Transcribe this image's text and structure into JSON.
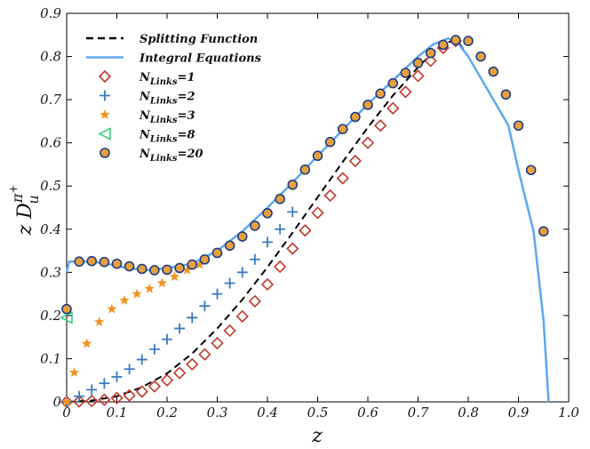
{
  "chart_data": {
    "type": "line",
    "title": "",
    "xlabel": "z",
    "ylabel": {
      "prefix": "z D",
      "superscript": "π",
      "superscript2": "+",
      "subscript": "u"
    },
    "xlim": [
      0,
      1.0
    ],
    "ylim": [
      0,
      0.9
    ],
    "x_ticks": [
      "0",
      "0.1",
      "0.2",
      "0.3",
      "0.4",
      "0.5",
      "0.6",
      "0.7",
      "0.8",
      "0.9",
      "1.0"
    ],
    "y_ticks": [
      "0",
      "0.1",
      "0.2",
      "0.3",
      "0.4",
      "0.5",
      "0.6",
      "0.7",
      "0.8",
      "0.9"
    ],
    "grid": false,
    "legend_position": "top-left",
    "legend": [
      {
        "label": "Splitting Function",
        "style": "dashed-line",
        "color": "#000000"
      },
      {
        "label": "Integral Equations",
        "style": "solid-line",
        "color": "#5ea8ef"
      },
      {
        "label": "N",
        "sub": "Links",
        "eq": "=1",
        "style": "diamond",
        "color": "#c0392b"
      },
      {
        "label": "N",
        "sub": "Links",
        "eq": "=2",
        "style": "plus",
        "color": "#3a7bbf"
      },
      {
        "label": "N",
        "sub": "Links",
        "eq": "=3",
        "style": "star",
        "color": "#f0931e"
      },
      {
        "label": "N",
        "sub": "Links",
        "eq": "=8",
        "style": "triangle-left",
        "color": "#2ecc71"
      },
      {
        "label": "N",
        "sub": "Links",
        "eq": "=20",
        "style": "circle",
        "color": "#1f3c88"
      }
    ],
    "series": [
      {
        "name": "Splitting Function",
        "style": "dashed-line",
        "color": "#000000",
        "x": [
          0.0,
          0.05,
          0.1,
          0.15,
          0.2,
          0.25,
          0.3,
          0.35,
          0.4,
          0.45,
          0.5,
          0.55,
          0.6,
          0.65,
          0.7,
          0.72,
          0.74,
          0.76,
          0.78,
          0.8,
          0.84,
          0.88,
          0.9,
          0.93,
          0.95,
          0.96
        ],
        "y": [
          0.0,
          0.003,
          0.013,
          0.034,
          0.066,
          0.112,
          0.17,
          0.237,
          0.312,
          0.392,
          0.474,
          0.556,
          0.636,
          0.71,
          0.775,
          0.798,
          0.818,
          0.834,
          0.834,
          0.8,
          0.72,
          0.64,
          0.537,
          0.395,
          0.187,
          0.0
        ]
      },
      {
        "name": "Integral Equations",
        "style": "solid-line",
        "color": "#5ea8ef",
        "x": [
          0.0,
          0.005,
          0.02,
          0.05,
          0.08,
          0.12,
          0.16,
          0.2,
          0.25,
          0.3,
          0.35,
          0.4,
          0.45,
          0.5,
          0.55,
          0.6,
          0.65,
          0.7,
          0.73,
          0.76,
          0.78,
          0.8,
          0.84,
          0.88,
          0.9,
          0.93,
          0.95,
          0.96
        ],
        "y": [
          0.3,
          0.325,
          0.325,
          0.325,
          0.32,
          0.31,
          0.305,
          0.31,
          0.32,
          0.35,
          0.395,
          0.45,
          0.508,
          0.57,
          0.63,
          0.69,
          0.745,
          0.8,
          0.828,
          0.842,
          0.83,
          0.8,
          0.72,
          0.64,
          0.537,
          0.395,
          0.187,
          0.0
        ]
      },
      {
        "name": "NLinks=1",
        "style": "diamond",
        "color": "#c0392b",
        "x": [
          0.0,
          0.025,
          0.05,
          0.075,
          0.1,
          0.125,
          0.15,
          0.175,
          0.2,
          0.225,
          0.25,
          0.275,
          0.3,
          0.325,
          0.35,
          0.375,
          0.4,
          0.425,
          0.45,
          0.475,
          0.5,
          0.525,
          0.55,
          0.575,
          0.6,
          0.625,
          0.65,
          0.675,
          0.7,
          0.725,
          0.75,
          0.775
        ],
        "y": [
          0.0,
          0.001,
          0.002,
          0.005,
          0.009,
          0.015,
          0.024,
          0.036,
          0.05,
          0.067,
          0.087,
          0.11,
          0.136,
          0.165,
          0.198,
          0.233,
          0.272,
          0.313,
          0.355,
          0.397,
          0.438,
          0.478,
          0.518,
          0.558,
          0.6,
          0.64,
          0.68,
          0.718,
          0.755,
          0.79,
          0.82,
          0.836
        ]
      },
      {
        "name": "NLinks=2",
        "style": "plus",
        "color": "#3a7bbf",
        "x": [
          0.0,
          0.025,
          0.05,
          0.075,
          0.1,
          0.125,
          0.15,
          0.175,
          0.2,
          0.225,
          0.25,
          0.275,
          0.3,
          0.325,
          0.35,
          0.375,
          0.4,
          0.425,
          0.45
        ],
        "y": [
          0.0,
          0.013,
          0.028,
          0.043,
          0.058,
          0.076,
          0.098,
          0.122,
          0.145,
          0.17,
          0.195,
          0.222,
          0.25,
          0.275,
          0.3,
          0.33,
          0.37,
          0.4,
          0.44
        ]
      },
      {
        "name": "NLinks=3",
        "style": "star",
        "color": "#f0931e",
        "x": [
          0.0,
          0.015,
          0.04,
          0.065,
          0.09,
          0.115,
          0.14,
          0.165,
          0.19,
          0.215,
          0.24,
          0.265
        ],
        "y": [
          0.0,
          0.068,
          0.135,
          0.185,
          0.215,
          0.235,
          0.25,
          0.262,
          0.275,
          0.29,
          0.305,
          0.318
        ]
      },
      {
        "name": "NLinks=8",
        "style": "triangle-left",
        "color": "#2ecc71",
        "x": [
          0.0
        ],
        "y": [
          0.195
        ]
      },
      {
        "name": "NLinks=20",
        "style": "circle",
        "color": "#1f3c88",
        "x": [
          0.0,
          0.025,
          0.05,
          0.075,
          0.1,
          0.125,
          0.15,
          0.175,
          0.2,
          0.225,
          0.25,
          0.275,
          0.3,
          0.325,
          0.35,
          0.375,
          0.4,
          0.425,
          0.45,
          0.475,
          0.5,
          0.525,
          0.55,
          0.575,
          0.6,
          0.625,
          0.65,
          0.675,
          0.7,
          0.725,
          0.75,
          0.775,
          0.8,
          0.825,
          0.85,
          0.875,
          0.9,
          0.925,
          0.95
        ],
        "y": [
          0.215,
          0.325,
          0.326,
          0.324,
          0.32,
          0.314,
          0.308,
          0.305,
          0.306,
          0.31,
          0.318,
          0.33,
          0.345,
          0.362,
          0.383,
          0.408,
          0.437,
          0.47,
          0.503,
          0.538,
          0.57,
          0.602,
          0.632,
          0.66,
          0.688,
          0.714,
          0.738,
          0.762,
          0.785,
          0.808,
          0.827,
          0.838,
          0.836,
          0.8,
          0.765,
          0.712,
          0.64,
          0.537,
          0.395
        ]
      }
    ]
  }
}
